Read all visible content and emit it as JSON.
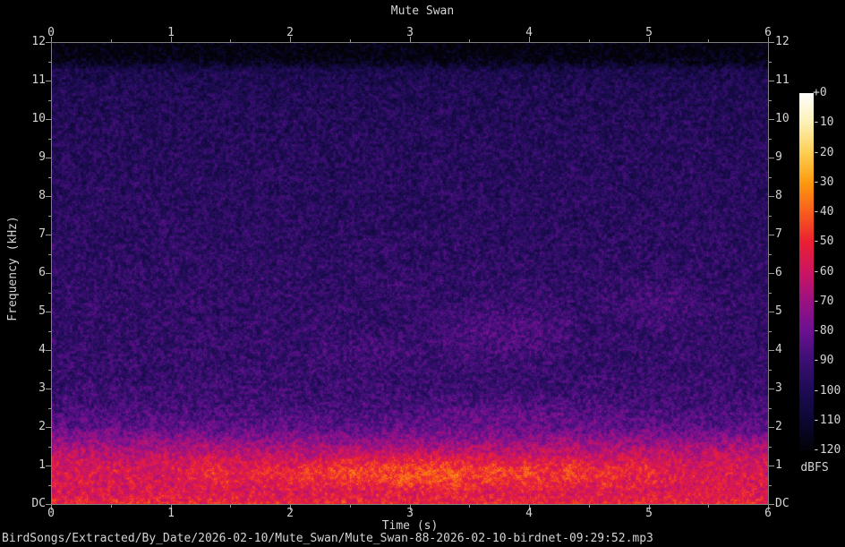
{
  "title": "Mute Swan",
  "footer": {
    "file_path": "BirdSongs/Extracted/By_Date/2026-02-10/Mute_Swan/Mute_Swan-88-2026-02-10-birdnet-09:29:52.mp3"
  },
  "chart_data": {
    "type": "heatmap",
    "subtype": "spectrogram",
    "title": "Mute Swan",
    "xlabel": "Time (s)",
    "ylabel": "Frequency (kHz)",
    "x_range_s": [
      0,
      6
    ],
    "y_range_khz": [
      0,
      12
    ],
    "x_major_ticks": [
      "0",
      "1",
      "2",
      "3",
      "4",
      "5",
      "6"
    ],
    "x_minor_step_s": 0.5,
    "x_axis_shown": "top and bottom",
    "y_major_ticks": [
      "12",
      "11",
      "10",
      "9",
      "8",
      "7",
      "6",
      "5",
      "4",
      "3",
      "2",
      "1",
      "DC"
    ],
    "y_minor_step_khz": 0.5,
    "y_axis_shown": "left and right",
    "grid": false,
    "frame_color": "#7e7e7e",
    "tick_color": "#9a9a9a",
    "text_color": "#d4d4d4",
    "background_color": "#000000",
    "colorbar": {
      "label": "dBFS",
      "position": "right",
      "range_db": [
        -120,
        0
      ],
      "tick_labels": [
        "+0",
        "-10",
        "-20",
        "-30",
        "-40",
        "-50",
        "-60",
        "-70",
        "-80",
        "-90",
        "-100",
        "-110",
        "-120"
      ]
    },
    "palette_stops": [
      {
        "db": -120,
        "color": "#020207"
      },
      {
        "db": -110,
        "color": "#0d0834"
      },
      {
        "db": -100,
        "color": "#1e0c55"
      },
      {
        "db": -90,
        "color": "#3c0f73"
      },
      {
        "db": -80,
        "color": "#6b1192"
      },
      {
        "db": -70,
        "color": "#9b1283"
      },
      {
        "db": -60,
        "color": "#cd1563"
      },
      {
        "db": -50,
        "color": "#ec2033"
      },
      {
        "db": -40,
        "color": "#f85e1d"
      },
      {
        "db": -30,
        "color": "#fd9a0e"
      },
      {
        "db": -20,
        "color": "#fdcf53"
      },
      {
        "db": -10,
        "color": "#fdf0b5"
      },
      {
        "db": 0,
        "color": "#ffffff"
      }
    ],
    "noise_floor_profile_khz_db": [
      [
        0.0,
        -50
      ],
      [
        0.1,
        -53
      ],
      [
        0.3,
        -57
      ],
      [
        0.7,
        -56
      ],
      [
        1.0,
        -58
      ],
      [
        1.3,
        -63
      ],
      [
        1.6,
        -71
      ],
      [
        2.0,
        -83
      ],
      [
        2.6,
        -90
      ],
      [
        3.5,
        -93
      ],
      [
        5.0,
        -94
      ],
      [
        7.0,
        -96
      ],
      [
        9.5,
        -98
      ],
      [
        10.8,
        -100
      ],
      [
        11.3,
        -103
      ],
      [
        11.5,
        -115
      ],
      [
        11.7,
        -119
      ],
      [
        12.0,
        -120
      ]
    ],
    "noise_spread_db": 15,
    "patch_spread_db": 9,
    "noise_seed": 9,
    "events": [
      {
        "t": 3.5,
        "f": 0.75,
        "dt": 1.1,
        "df": 0.35,
        "gain": 4
      },
      {
        "t": 1.35,
        "f": 0.8,
        "dt": 0.1,
        "df": 0.25,
        "gain": 8
      },
      {
        "t": 1.8,
        "f": 0.85,
        "dt": 0.1,
        "df": 0.22,
        "gain": 7
      },
      {
        "t": 2.15,
        "f": 0.8,
        "dt": 0.09,
        "df": 0.22,
        "gain": 8
      },
      {
        "t": 2.5,
        "f": 0.85,
        "dt": 0.12,
        "df": 0.28,
        "gain": 10
      },
      {
        "t": 2.8,
        "f": 0.8,
        "dt": 0.1,
        "df": 0.25,
        "gain": 9
      },
      {
        "t": 3.05,
        "f": 0.85,
        "dt": 0.12,
        "df": 0.28,
        "gain": 10
      },
      {
        "t": 3.35,
        "f": 0.8,
        "dt": 0.12,
        "df": 0.28,
        "gain": 10
      },
      {
        "t": 3.7,
        "f": 0.85,
        "dt": 0.1,
        "df": 0.25,
        "gain": 9
      },
      {
        "t": 4.0,
        "f": 0.8,
        "dt": 0.1,
        "df": 0.25,
        "gain": 9
      },
      {
        "t": 4.35,
        "f": 0.85,
        "dt": 0.1,
        "df": 0.25,
        "gain": 8
      },
      {
        "t": 4.65,
        "f": 0.8,
        "dt": 0.1,
        "df": 0.22,
        "gain": 7
      },
      {
        "t": 5.0,
        "f": 0.85,
        "dt": 0.1,
        "df": 0.22,
        "gain": 6
      },
      {
        "t": 3.6,
        "f": 4.4,
        "dt": 0.25,
        "df": 0.5,
        "gain": 7
      },
      {
        "t": 4.1,
        "f": 4.6,
        "dt": 0.2,
        "df": 0.45,
        "gain": 6
      },
      {
        "t": 5.1,
        "f": 5.2,
        "dt": 0.25,
        "df": 0.4,
        "gain": 6
      },
      {
        "t": 3.9,
        "f": 2.35,
        "dt": 0.5,
        "df": 0.25,
        "gain": 6
      },
      {
        "t": 2.6,
        "f": 3.9,
        "dt": 0.3,
        "df": 0.3,
        "gain": 5
      }
    ]
  }
}
